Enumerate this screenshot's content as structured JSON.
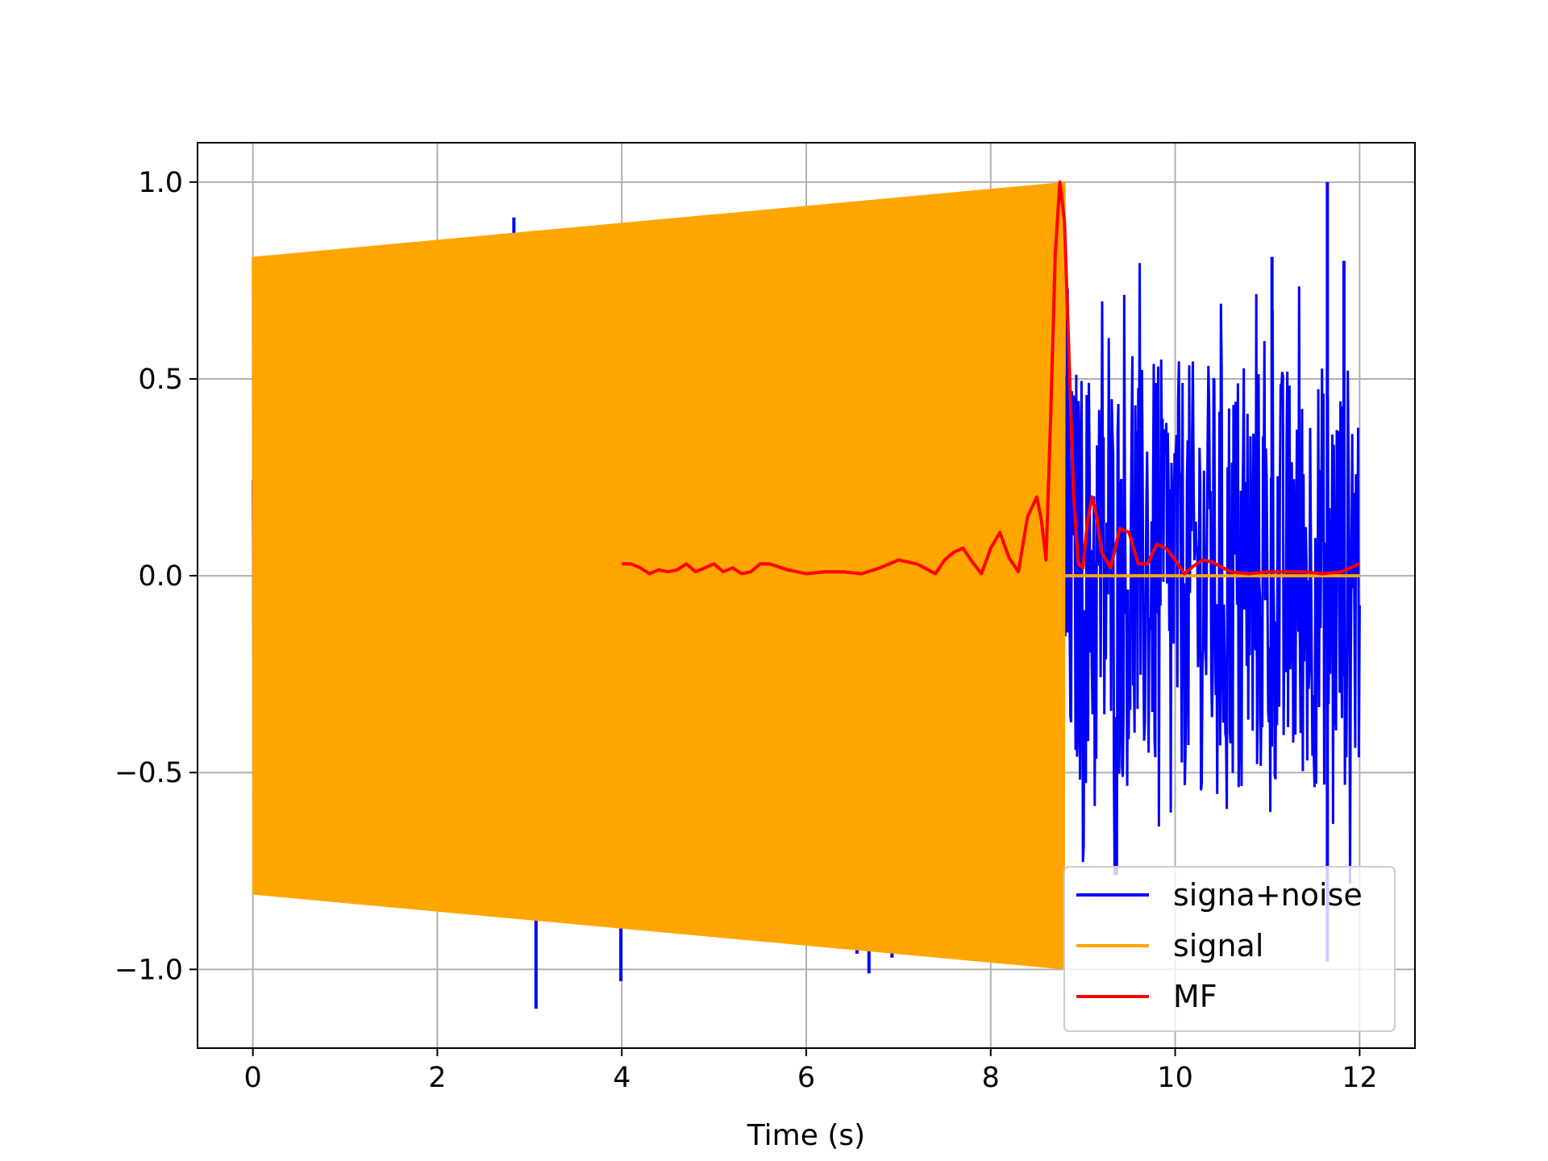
{
  "chart_data": {
    "type": "line",
    "title": "",
    "xlabel": "Time (s)",
    "ylabel": "",
    "xlim": [
      -0.6,
      12.6
    ],
    "ylim": [
      -1.2,
      1.1
    ],
    "xticks": [
      0,
      2,
      4,
      6,
      8,
      10,
      12
    ],
    "xtick_labels": [
      "0",
      "2",
      "4",
      "6",
      "8",
      "10",
      "12"
    ],
    "yticks": [
      -1.0,
      -0.5,
      0.0,
      0.5,
      1.0
    ],
    "ytick_labels": [
      "−1.0",
      "−0.5",
      "0.0",
      "0.5",
      "1.0"
    ],
    "grid": true,
    "legend_position": "bottom-right",
    "series": [
      {
        "name": "signa+noise",
        "color": "#0000ff",
        "style": "dense noisy oscillation; visible outside signal envelope, spikes near 2.83 (0.91), 3.07 (-1.1), 3.93 (0.89), 3.99 (-1.03), 6.68 (-1.01), 11.65 (1.0), 11.65 (-0.98)",
        "x_range": [
          0,
          12
        ],
        "envelope_after_signal": {
          "x": [
            8.8,
            12.0
          ],
          "min": -0.78,
          "max": 0.82
        },
        "spikes": [
          {
            "x": 2.83,
            "y": 0.91
          },
          {
            "x": 3.07,
            "y": -1.1
          },
          {
            "x": 3.93,
            "y": 0.89
          },
          {
            "x": 3.99,
            "y": -1.03
          },
          {
            "x": 6.55,
            "y": -0.96
          },
          {
            "x": 6.68,
            "y": -1.01
          },
          {
            "x": 6.93,
            "y": -0.97
          },
          {
            "x": 8.83,
            "y": 0.73
          },
          {
            "x": 11.05,
            "y": 0.81
          },
          {
            "x": 11.65,
            "y": 1.0
          },
          {
            "x": 11.65,
            "y": -0.98
          },
          {
            "x": 11.83,
            "y": 0.8
          }
        ]
      },
      {
        "name": "signal",
        "color": "#ffa500",
        "style": "rapid chirp oscillation with linearly growing amplitude, then zero",
        "x": [
          0,
          8.8,
          8.8,
          12.0
        ],
        "amplitude": [
          0.81,
          1.0,
          0.0,
          0.0
        ]
      },
      {
        "name": "MF",
        "color": "#ff0000",
        "x": [
          4.0,
          4.1,
          4.2,
          4.3,
          4.4,
          4.5,
          4.6,
          4.7,
          4.8,
          4.9,
          5.0,
          5.1,
          5.2,
          5.3,
          5.4,
          5.5,
          5.6,
          5.8,
          6.0,
          6.2,
          6.4,
          6.6,
          6.8,
          7.0,
          7.2,
          7.4,
          7.5,
          7.6,
          7.7,
          7.8,
          7.9,
          8.0,
          8.1,
          8.2,
          8.3,
          8.4,
          8.5,
          8.55,
          8.6,
          8.65,
          8.7,
          8.75,
          8.8,
          8.85,
          8.9,
          8.95,
          9.0,
          9.05,
          9.1,
          9.15,
          9.2,
          9.3,
          9.4,
          9.5,
          9.6,
          9.7,
          9.8,
          9.9,
          10.0,
          10.1,
          10.2,
          10.3,
          10.4,
          10.6,
          10.8,
          11.0,
          11.2,
          11.4,
          11.6,
          11.8,
          12.0
        ],
        "y": [
          0.03,
          0.03,
          0.02,
          0.005,
          0.015,
          0.01,
          0.015,
          0.03,
          0.01,
          0.02,
          0.03,
          0.01,
          0.02,
          0.005,
          0.01,
          0.03,
          0.03,
          0.015,
          0.005,
          0.01,
          0.01,
          0.005,
          0.02,
          0.04,
          0.03,
          0.005,
          0.04,
          0.06,
          0.07,
          0.035,
          0.005,
          0.07,
          0.11,
          0.045,
          0.01,
          0.15,
          0.2,
          0.14,
          0.04,
          0.4,
          0.82,
          1.0,
          0.9,
          0.55,
          0.2,
          0.03,
          0.02,
          0.14,
          0.2,
          0.15,
          0.06,
          0.02,
          0.12,
          0.11,
          0.03,
          0.03,
          0.08,
          0.07,
          0.04,
          0.005,
          0.025,
          0.04,
          0.035,
          0.01,
          0.005,
          0.01,
          0.01,
          0.01,
          0.005,
          0.01,
          0.03
        ]
      }
    ]
  }
}
